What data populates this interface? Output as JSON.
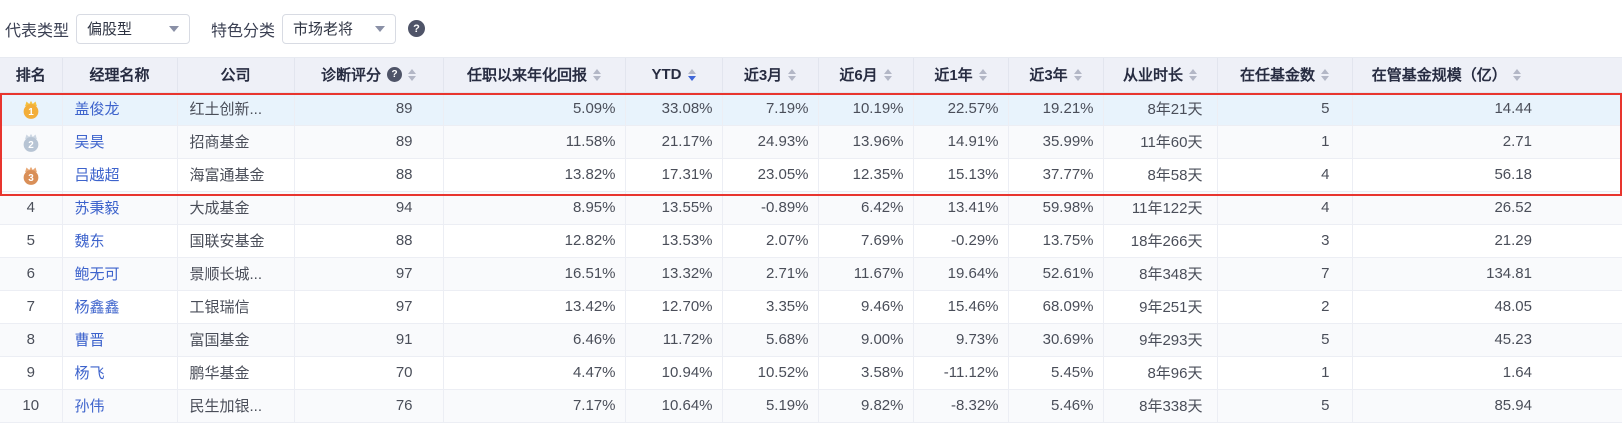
{
  "filters": {
    "rep_type_label": "代表类型",
    "rep_type_value": "偏股型",
    "feature_label": "特色分类",
    "feature_value": "市场老将",
    "help_glyph": "?"
  },
  "colors": {
    "accent_red": "#e8352e",
    "link_blue": "#3d63cc",
    "sort_active_blue": "#3f66d8",
    "header_bg": "#eef0f7",
    "highlight_row_bg": "#e8f3fc",
    "medal_gold": "#f3ae39",
    "medal_silver": "#b7c4d4",
    "medal_bronze": "#d98f58"
  },
  "table": {
    "columns": [
      {
        "key": "rank",
        "label": "排名",
        "sortable": false
      },
      {
        "key": "name",
        "label": "经理名称",
        "sortable": false
      },
      {
        "key": "company",
        "label": "公司",
        "sortable": false
      },
      {
        "key": "score",
        "label": "诊断评分",
        "sortable": true,
        "help": true
      },
      {
        "key": "annualized",
        "label": "任职以来年化回报",
        "sortable": true
      },
      {
        "key": "ytd",
        "label": "YTD",
        "sortable": true,
        "sorted": "desc"
      },
      {
        "key": "m3",
        "label": "近3月",
        "sortable": true
      },
      {
        "key": "m6",
        "label": "近6月",
        "sortable": true
      },
      {
        "key": "y1",
        "label": "近1年",
        "sortable": true
      },
      {
        "key": "y3",
        "label": "近3年",
        "sortable": true
      },
      {
        "key": "tenure",
        "label": "从业时长",
        "sortable": true
      },
      {
        "key": "fund_count",
        "label": "在任基金数",
        "sortable": true
      },
      {
        "key": "aum",
        "label": "在管基金规模（亿）",
        "sortable": true
      }
    ],
    "rows": [
      {
        "rank": 1,
        "medal": "gold",
        "highlighted": true,
        "name": "盖俊龙",
        "company": "红土创新...",
        "score": 89,
        "annualized": "5.09%",
        "ytd": "33.08%",
        "m3": "7.19%",
        "m6": "10.19%",
        "y1": "22.57%",
        "y3": "19.21%",
        "tenure": "8年21天",
        "fund_count": 5,
        "aum": "14.44"
      },
      {
        "rank": 2,
        "medal": "silver",
        "name": "吴昊",
        "company": "招商基金",
        "score": 89,
        "annualized": "11.58%",
        "ytd": "21.17%",
        "m3": "24.93%",
        "m6": "13.96%",
        "y1": "14.91%",
        "y3": "35.99%",
        "tenure": "11年60天",
        "fund_count": 1,
        "aum": "2.71"
      },
      {
        "rank": 3,
        "medal": "bronze",
        "name": "吕越超",
        "company": "海富通基金",
        "score": 88,
        "annualized": "13.82%",
        "ytd": "17.31%",
        "m3": "23.05%",
        "m6": "12.35%",
        "y1": "15.13%",
        "y3": "37.77%",
        "tenure": "8年58天",
        "fund_count": 4,
        "aum": "56.18"
      },
      {
        "rank": 4,
        "name": "苏秉毅",
        "company": "大成基金",
        "score": 94,
        "annualized": "8.95%",
        "ytd": "13.55%",
        "m3": "-0.89%",
        "m6": "6.42%",
        "y1": "13.41%",
        "y3": "59.98%",
        "tenure": "11年122天",
        "fund_count": 4,
        "aum": "26.52"
      },
      {
        "rank": 5,
        "name": "魏东",
        "company": "国联安基金",
        "score": 88,
        "annualized": "12.82%",
        "ytd": "13.53%",
        "m3": "2.07%",
        "m6": "7.69%",
        "y1": "-0.29%",
        "y3": "13.75%",
        "tenure": "18年266天",
        "fund_count": 3,
        "aum": "21.29"
      },
      {
        "rank": 6,
        "name": "鲍无可",
        "company": "景顺长城...",
        "score": 97,
        "annualized": "16.51%",
        "ytd": "13.32%",
        "m3": "2.71%",
        "m6": "11.67%",
        "y1": "19.64%",
        "y3": "52.61%",
        "tenure": "8年348天",
        "fund_count": 7,
        "aum": "134.81"
      },
      {
        "rank": 7,
        "name": "杨鑫鑫",
        "company": "工银瑞信",
        "score": 97,
        "annualized": "13.42%",
        "ytd": "12.70%",
        "m3": "3.35%",
        "m6": "9.46%",
        "y1": "15.46%",
        "y3": "68.09%",
        "tenure": "9年251天",
        "fund_count": 2,
        "aum": "48.05"
      },
      {
        "rank": 8,
        "name": "曹晋",
        "company": "富国基金",
        "score": 91,
        "annualized": "6.46%",
        "ytd": "11.72%",
        "m3": "5.68%",
        "m6": "9.00%",
        "y1": "9.73%",
        "y3": "30.69%",
        "tenure": "9年293天",
        "fund_count": 5,
        "aum": "45.23"
      },
      {
        "rank": 9,
        "name": "杨飞",
        "company": "鹏华基金",
        "score": 70,
        "annualized": "4.47%",
        "ytd": "10.94%",
        "m3": "10.52%",
        "m6": "3.58%",
        "y1": "-11.12%",
        "y3": "5.45%",
        "tenure": "8年96天",
        "fund_count": 1,
        "aum": "1.64"
      },
      {
        "rank": 10,
        "name": "孙伟",
        "company": "民生加银...",
        "score": 76,
        "annualized": "7.17%",
        "ytd": "10.64%",
        "m3": "5.19%",
        "m6": "9.82%",
        "y1": "-8.32%",
        "y3": "5.46%",
        "tenure": "8年338天",
        "fund_count": 5,
        "aum": "85.94"
      }
    ]
  }
}
